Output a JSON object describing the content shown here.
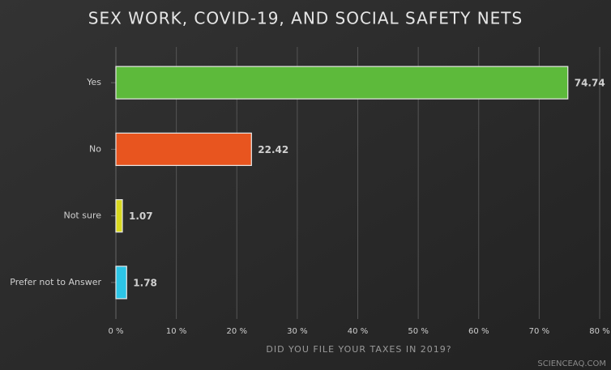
{
  "chart_data": {
    "type": "hbar",
    "title": "SEX WORK, COVID-19, AND SOCIAL SAFETY NETS",
    "x_label": "DID YOU FILE YOUR TAXES IN 2019?",
    "categories": [
      "Yes",
      "No",
      "Not sure",
      "Prefer not to Answer"
    ],
    "values": [
      74.74,
      22.42,
      1.07,
      1.78
    ],
    "colors": [
      "#5dba3b",
      "#e8551f",
      "#d9d91f",
      "#2cc5e6"
    ],
    "xlim": [
      0,
      80
    ],
    "xticks": [
      {
        "value": 0,
        "label": "0 %"
      },
      {
        "value": 10,
        "label": "10 %"
      },
      {
        "value": 20,
        "label": "20 %"
      },
      {
        "value": 30,
        "label": "30 %"
      },
      {
        "value": 40,
        "label": "40 %"
      },
      {
        "value": 50,
        "label": "50 %"
      },
      {
        "value": 60,
        "label": "60 %"
      },
      {
        "value": 70,
        "label": "70 %"
      },
      {
        "value": 80,
        "label": "80 %"
      }
    ],
    "grid": true,
    "watermark": "SCIENCEAQ.COM"
  }
}
